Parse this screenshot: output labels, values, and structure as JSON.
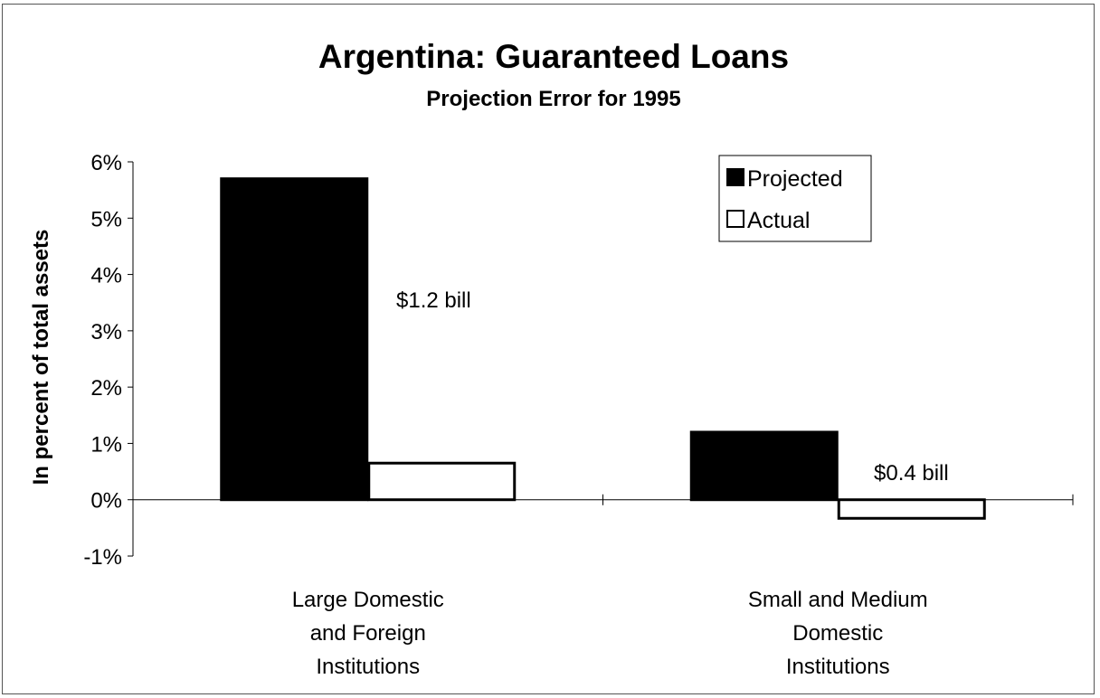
{
  "chart_data": {
    "type": "bar",
    "title": "Argentina: Guaranteed Loans",
    "subtitle": "Projection Error for 1995",
    "ylabel": "In percent of total assets",
    "xlabel": "",
    "ylim": [
      -1,
      6
    ],
    "yticks": [
      6,
      5,
      4,
      3,
      2,
      1,
      0,
      -1
    ],
    "ytick_labels": [
      "6%",
      "5%",
      "4%",
      "3%",
      "2%",
      "1%",
      "0%",
      "-1%"
    ],
    "categories": [
      [
        "Large Domestic",
        "and Foreign",
        "Institutions"
      ],
      [
        "Small and Medium",
        "Domestic",
        "Institutions"
      ]
    ],
    "series": [
      {
        "name": "Projected",
        "values": [
          5.7,
          1.2
        ],
        "color": "#000000"
      },
      {
        "name": "Actual",
        "values": [
          0.65,
          -0.33
        ],
        "color": "#ffffff"
      }
    ],
    "annotations": [
      "$1.2 bill",
      "$0.4 bill"
    ],
    "legend": "top-right",
    "grid": false
  }
}
